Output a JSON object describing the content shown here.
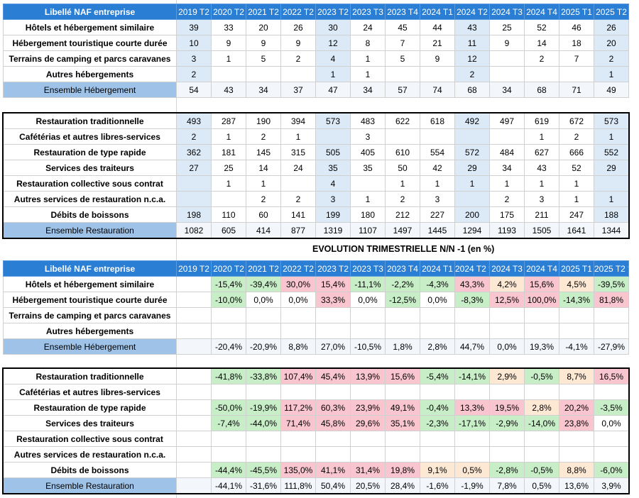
{
  "quarters": [
    "2019 T2",
    "2020 T2",
    "2021 T2",
    "2022 T2",
    "2023 T2",
    "2023 T3",
    "2023 T4",
    "2024 T1",
    "2024 T2",
    "2024 T3",
    "2024 T4",
    "2025 T1",
    "2025 T2"
  ],
  "quarters_evo": [
    "2019 T2",
    "2020 T2",
    "2021 T2",
    "2022 T2",
    "2023 T2",
    "2023 T3",
    "2023 T4",
    "2024 T1",
    "2024 T2 *",
    "2024 T3",
    "2024 T4",
    "2025 T1",
    "2025 T2 *"
  ],
  "header_label": "Libellé NAF entreprise",
  "subtitle": "EVOLUTION TRIMESTRIELLE N/N -1 (en %)",
  "hebergement_counts": {
    "rows": [
      {
        "label": "Hôtels et hébergement similaire",
        "values": [
          "39",
          "33",
          "20",
          "26",
          "30",
          "24",
          "45",
          "44",
          "43",
          "25",
          "52",
          "46",
          "26"
        ]
      },
      {
        "label": "Hébergement touristique courte durée",
        "values": [
          "10",
          "9",
          "9",
          "9",
          "12",
          "8",
          "7",
          "21",
          "11",
          "9",
          "14",
          "18",
          "20"
        ]
      },
      {
        "label": "Terrains de camping et parcs caravanes",
        "values": [
          "3",
          "1",
          "5",
          "2",
          "4",
          "1",
          "5",
          "9",
          "12",
          "",
          "2",
          "7",
          "2"
        ]
      },
      {
        "label": "Autres hébergements",
        "values": [
          "2",
          "",
          "",
          "",
          "1",
          "1",
          "",
          "",
          "2",
          "",
          "",
          "",
          "1"
        ]
      }
    ],
    "total": {
      "label": "Ensemble Hébergement",
      "values": [
        "54",
        "43",
        "34",
        "37",
        "47",
        "34",
        "57",
        "74",
        "68",
        "34",
        "68",
        "71",
        "49"
      ]
    }
  },
  "restauration_counts": {
    "rows": [
      {
        "label": "Restauration traditionnelle",
        "values": [
          "493",
          "287",
          "190",
          "394",
          "573",
          "483",
          "622",
          "618",
          "492",
          "497",
          "619",
          "672",
          "573"
        ]
      },
      {
        "label": "Cafétérias et autres libres-services",
        "values": [
          "2",
          "1",
          "2",
          "1",
          "",
          "3",
          "",
          "",
          "",
          "",
          "1",
          "2",
          "1"
        ]
      },
      {
        "label": "Restauration de type rapide",
        "values": [
          "362",
          "181",
          "145",
          "315",
          "505",
          "405",
          "610",
          "554",
          "572",
          "484",
          "627",
          "666",
          "552"
        ]
      },
      {
        "label": "Services des traiteurs",
        "values": [
          "27",
          "25",
          "14",
          "24",
          "35",
          "35",
          "50",
          "42",
          "29",
          "34",
          "43",
          "52",
          "29"
        ]
      },
      {
        "label": "Restauration collective sous contrat",
        "values": [
          "",
          "1",
          "1",
          "",
          "4",
          "",
          "1",
          "1",
          "1",
          "1",
          "1",
          "1",
          ""
        ]
      },
      {
        "label": "Autres services de restauration n.c.a.",
        "values": [
          "",
          "",
          "2",
          "2",
          "3",
          "1",
          "2",
          "3",
          "",
          "2",
          "3",
          "1",
          "1"
        ]
      },
      {
        "label": "Débits de boissons",
        "values": [
          "198",
          "110",
          "60",
          "141",
          "199",
          "180",
          "212",
          "227",
          "200",
          "175",
          "211",
          "247",
          "188"
        ]
      }
    ],
    "total": {
      "label": "Ensemble Restauration",
      "values": [
        "1082",
        "605",
        "414",
        "877",
        "1319",
        "1107",
        "1497",
        "1445",
        "1294",
        "1193",
        "1505",
        "1641",
        "1344"
      ]
    }
  },
  "hebergement_evolution": {
    "rows": [
      {
        "label": "Hôtels et hébergement similaire",
        "values": [
          "",
          "-15,4%",
          "-39,4%",
          "30,0%",
          "15,4%",
          "-11,1%",
          "-2,2%",
          "-4,3%",
          "43,3%",
          "4,2%",
          "15,6%",
          "4,5%",
          "-39,5%"
        ]
      },
      {
        "label": "Hébergement touristique courte durée",
        "values": [
          "",
          "-10,0%",
          "0,0%",
          "0,0%",
          "33,3%",
          "0,0%",
          "-12,5%",
          "0,0%",
          "-8,3%",
          "12,5%",
          "100,0%",
          "-14,3%",
          "81,8%"
        ]
      },
      {
        "label": "Terrains de camping et parcs caravanes",
        "values": [
          "",
          "",
          "",
          "",
          "",
          "",
          "",
          "",
          "",
          "",
          "",
          "",
          ""
        ]
      },
      {
        "label": "Autres hébergements",
        "values": [
          "",
          "",
          "",
          "",
          "",
          "",
          "",
          "",
          "",
          "",
          "",
          "",
          ""
        ]
      }
    ],
    "total": {
      "label": "Ensemble Hébergement",
      "values": [
        "",
        "-20,4%",
        "-20,9%",
        "8,8%",
        "27,0%",
        "-10,5%",
        "1,8%",
        "2,8%",
        "44,7%",
        "0,0%",
        "19,3%",
        "-4,1%",
        "-27,9%"
      ]
    }
  },
  "restauration_evolution": {
    "rows": [
      {
        "label": "Restauration traditionnelle",
        "values": [
          "",
          "-41,8%",
          "-33,8%",
          "107,4%",
          "45,4%",
          "13,9%",
          "15,6%",
          "-5,4%",
          "-14,1%",
          "2,9%",
          "-0,5%",
          "8,7%",
          "16,5%"
        ]
      },
      {
        "label": "Cafétérias et autres libres-services",
        "values": [
          "",
          "",
          "",
          "",
          "",
          "",
          "",
          "",
          "",
          "",
          "",
          "",
          ""
        ]
      },
      {
        "label": "Restauration de type rapide",
        "values": [
          "",
          "-50,0%",
          "-19,9%",
          "117,2%",
          "60,3%",
          "23,9%",
          "49,1%",
          "-0,4%",
          "13,3%",
          "19,5%",
          "2,8%",
          "20,2%",
          "-3,5%"
        ]
      },
      {
        "label": "Services des traiteurs",
        "values": [
          "",
          "-7,4%",
          "-44,0%",
          "71,4%",
          "45,8%",
          "29,6%",
          "35,1%",
          "-2,3%",
          "-17,1%",
          "-2,9%",
          "-14,0%",
          "23,8%",
          "0,0%"
        ]
      },
      {
        "label": "Restauration collective sous contrat",
        "values": [
          "",
          "",
          "",
          "",
          "",
          "",
          "",
          "",
          "",
          "",
          "",
          "",
          ""
        ]
      },
      {
        "label": "Autres services de restauration n.c.a.",
        "values": [
          "",
          "",
          "",
          "",
          "",
          "",
          "",
          "",
          "",
          "",
          "",
          "",
          ""
        ]
      },
      {
        "label": "Débits de boissons",
        "values": [
          "",
          "-44,4%",
          "-45,5%",
          "135,0%",
          "41,1%",
          "31,4%",
          "19,8%",
          "9,1%",
          "0,5%",
          "-2,8%",
          "-0,5%",
          "8,8%",
          "-6,0%"
        ]
      }
    ],
    "total": {
      "label": "Ensemble Restauration",
      "values": [
        "",
        "-44,1%",
        "-31,6%",
        "111,8%",
        "50,4%",
        "20,5%",
        "28,4%",
        "-1,6%",
        "-1,9%",
        "7,8%",
        "0,5%",
        "13,6%",
        "3,9%"
      ]
    }
  },
  "colors": {
    "header": "#2a7fd4",
    "total_label": "#9fc3e8",
    "highlight": "#dce9f7",
    "increase": "#f9c6cf",
    "decrease": "#c8eec8",
    "slight": "#fde8d4"
  }
}
